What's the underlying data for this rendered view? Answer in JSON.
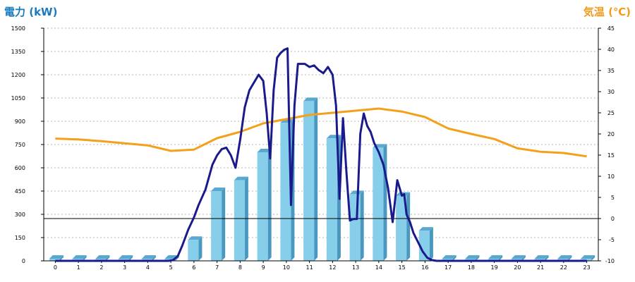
{
  "chart_data": {
    "type": "bar",
    "title": "",
    "left_axis": {
      "label": "電力 (kW)",
      "range": [
        0,
        1500
      ],
      "ticks": [
        0,
        150,
        300,
        450,
        600,
        750,
        900,
        1050,
        1200,
        1350,
        1500
      ],
      "color": "#1a7ac0"
    },
    "right_axis": {
      "label": "気温 (℃)",
      "range": [
        -10,
        45
      ],
      "ticks": [
        -10,
        -5,
        0,
        5,
        10,
        15,
        20,
        25,
        30,
        35,
        40,
        45
      ],
      "color": "#f29a1c"
    },
    "x": {
      "label": "",
      "categories": [
        "0",
        "1",
        "2",
        "3",
        "4",
        "5",
        "6",
        "7",
        "8",
        "9",
        "10",
        "11",
        "12",
        "13",
        "14",
        "15",
        "16",
        "17",
        "18",
        "19",
        "20",
        "21",
        "22",
        "23"
      ]
    },
    "grid": true,
    "legend": "none",
    "series": [
      {
        "type": "bar",
        "axis": "left",
        "color": "#87ceeb",
        "values": [
          0,
          0,
          0,
          0,
          0,
          0,
          135,
          450,
          520,
          700,
          890,
          1030,
          790,
          430,
          730,
          420,
          195,
          0,
          0,
          0,
          0,
          0,
          0,
          0
        ]
      },
      {
        "type": "line",
        "axis": "left",
        "color": "#1a1a8c",
        "x": [
          0,
          4.9,
          5.1,
          5.3,
          5.5,
          5.75,
          6,
          6.2,
          6.5,
          6.8,
          7,
          7.2,
          7.4,
          7.6,
          7.8,
          8,
          8.2,
          8.4,
          8.6,
          8.8,
          9,
          9.15,
          9.3,
          9.45,
          9.6,
          9.75,
          9.9,
          10.05,
          10.2,
          10.35,
          10.5,
          10.65,
          10.8,
          11,
          11.2,
          11.4,
          11.6,
          11.8,
          12,
          12.15,
          12.3,
          12.45,
          12.6,
          12.75,
          12.9,
          13.05,
          13.2,
          13.35,
          13.5,
          13.65,
          13.8,
          14,
          14.2,
          14.4,
          14.6,
          14.8,
          15,
          15.1,
          15.2,
          15.35,
          15.5,
          15.7,
          15.9,
          16.1,
          16.3,
          16.5,
          16.75,
          17,
          23
        ],
        "values": [
          0,
          0,
          5,
          30,
          100,
          200,
          280,
          360,
          460,
          620,
          680,
          720,
          730,
          680,
          600,
          780,
          990,
          1100,
          1150,
          1200,
          1160,
          950,
          660,
          1100,
          1310,
          1340,
          1360,
          1370,
          360,
          1000,
          1270,
          1270,
          1270,
          1250,
          1260,
          1230,
          1210,
          1250,
          1200,
          1000,
          400,
          920,
          570,
          260,
          270,
          270,
          820,
          950,
          870,
          830,
          760,
          700,
          620,
          470,
          250,
          520,
          420,
          430,
          300,
          250,
          180,
          120,
          60,
          20,
          5,
          0,
          0,
          0,
          0
        ]
      },
      {
        "type": "line",
        "axis": "right",
        "color": "#f5a01a",
        "values": [
          18.9,
          18.7,
          18.3,
          17.8,
          17.3,
          16.0,
          16.3,
          19.0,
          20.5,
          22.5,
          23.5,
          24.5,
          25.0,
          25.5,
          26.0,
          25.3,
          24.0,
          21.3,
          20.0,
          18.8,
          16.6,
          15.8,
          15.5,
          14.7
        ]
      }
    ],
    "reference_line": {
      "axis": "right",
      "value": 0,
      "color": "#000000"
    }
  }
}
